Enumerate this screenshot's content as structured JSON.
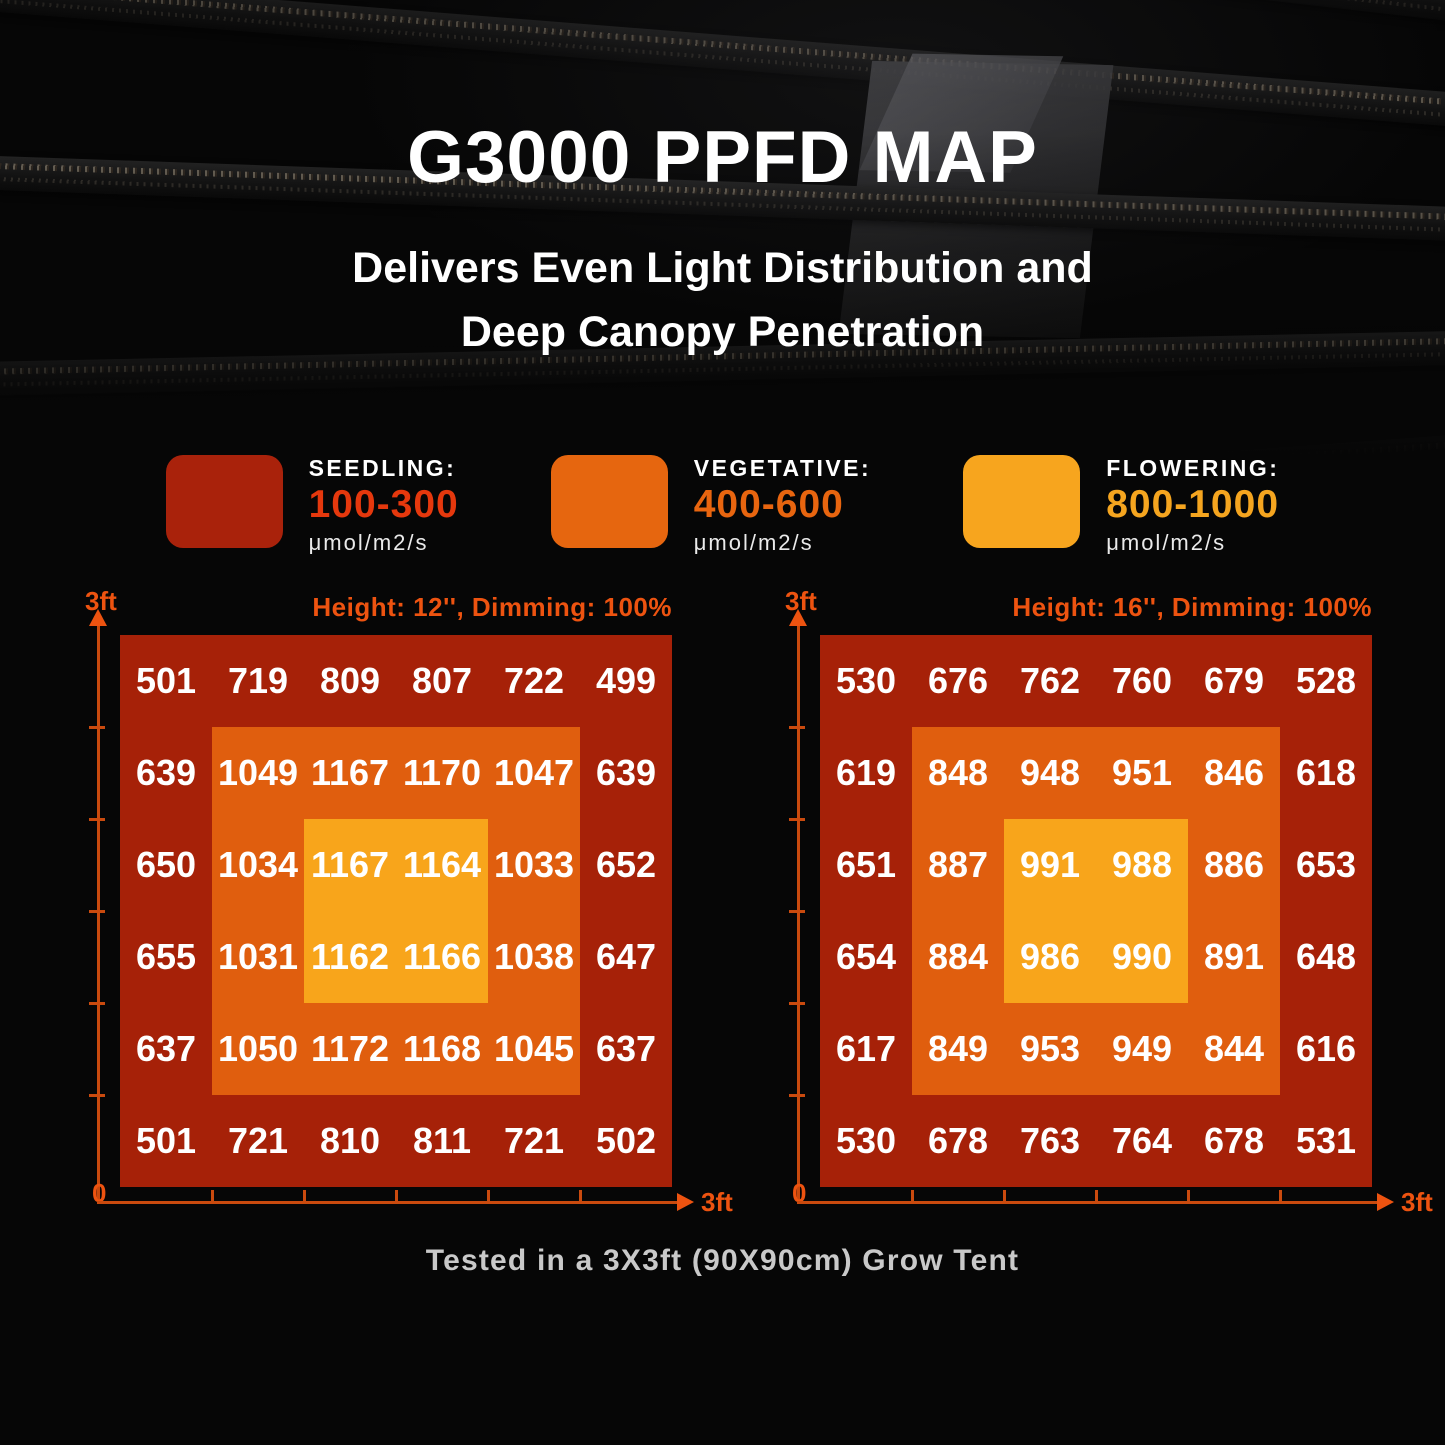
{
  "title": "G3000 PPFD MAP",
  "subtitle": [
    "Delivers Even Light Distribution and",
    "Deep Canopy Penetration"
  ],
  "legend": {
    "items": [
      {
        "name": "SEEDLING:",
        "range": "100-300",
        "unit": "μmol/m2/s",
        "swatch_color": "#A9220B",
        "range_color": "#E5380D"
      },
      {
        "name": "VEGETATIVE:",
        "range": "400-600",
        "unit": "μmol/m2/s",
        "swatch_color": "#E6660F",
        "range_color": "#E8650F"
      },
      {
        "name": "FLOWERING:",
        "range": "800-1000",
        "unit": "μmol/m2/s",
        "swatch_color": "#F7A51E",
        "range_color": "#F5A51F"
      }
    ]
  },
  "chart_data": [
    {
      "type": "heatmap",
      "title": "Height: 12'', Dimming: 100%",
      "grid_size": "6x6",
      "x_axis": {
        "min_label": "0",
        "max_label": "3ft"
      },
      "y_axis": {
        "max_label": "3ft"
      },
      "values": [
        [
          501,
          719,
          809,
          807,
          722,
          499
        ],
        [
          639,
          1049,
          1167,
          1170,
          1047,
          639
        ],
        [
          650,
          1034,
          1167,
          1164,
          1033,
          652
        ],
        [
          655,
          1031,
          1162,
          1166,
          1038,
          647
        ],
        [
          637,
          1050,
          1172,
          1168,
          1045,
          637
        ],
        [
          501,
          721,
          810,
          811,
          721,
          502
        ]
      ],
      "zones": {
        "outer_color": "#A62108",
        "middle_color": "#E05E0E",
        "inner_color": "#F8A51B"
      }
    },
    {
      "type": "heatmap",
      "title": "Height: 16'', Dimming: 100%",
      "grid_size": "6x6",
      "x_axis": {
        "min_label": "0",
        "max_label": "3ft"
      },
      "y_axis": {
        "max_label": "3ft"
      },
      "values": [
        [
          530,
          676,
          762,
          760,
          679,
          528
        ],
        [
          619,
          848,
          948,
          951,
          846,
          618
        ],
        [
          651,
          887,
          991,
          988,
          886,
          653
        ],
        [
          654,
          884,
          986,
          990,
          891,
          648
        ],
        [
          617,
          849,
          953,
          949,
          844,
          616
        ],
        [
          530,
          678,
          763,
          764,
          678,
          531
        ]
      ],
      "zones": {
        "outer_color": "#A62108",
        "middle_color": "#E05E0E",
        "inner_color": "#F8A51B"
      }
    }
  ],
  "footer": "Tested in a 3X3ft (90X90cm) Grow Tent",
  "colors": {
    "accent_orange": "#ED5310",
    "axis_line": "#C94A0E",
    "value_text": "#FFFFFF",
    "footer_text": "#C9C9C9",
    "background": "#060606"
  }
}
